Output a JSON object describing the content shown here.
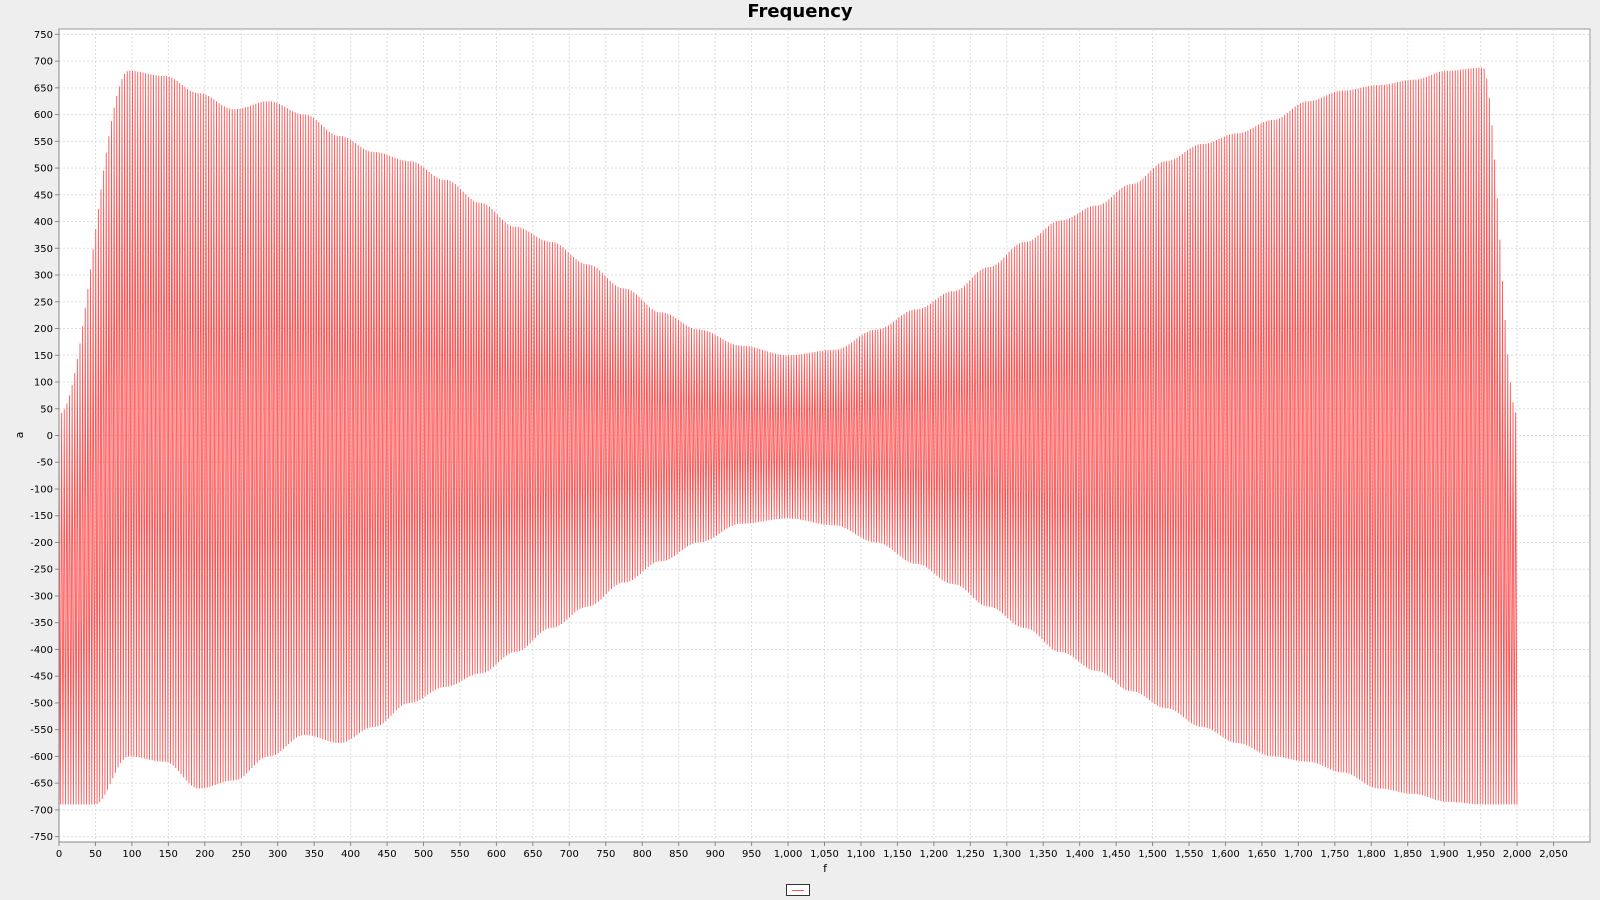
{
  "chart_data": {
    "type": "line",
    "title": "Frequency",
    "xlabel": "f",
    "ylabel": "a",
    "xlim": [
      0,
      2100
    ],
    "ylim": [
      -760,
      760
    ],
    "x_ticks": [
      0,
      50,
      100,
      150,
      200,
      250,
      300,
      350,
      400,
      450,
      500,
      550,
      600,
      650,
      700,
      750,
      800,
      850,
      900,
      950,
      1000,
      1050,
      1100,
      1150,
      1200,
      1250,
      1300,
      1350,
      1400,
      1450,
      1500,
      1550,
      1600,
      1650,
      1700,
      1750,
      1800,
      1850,
      1900,
      1950,
      2000,
      2050
    ],
    "y_ticks": [
      750,
      700,
      650,
      600,
      550,
      500,
      450,
      400,
      350,
      300,
      250,
      200,
      150,
      100,
      50,
      0,
      -50,
      -100,
      -150,
      -200,
      -250,
      -300,
      -350,
      -400,
      -450,
      -500,
      -550,
      -600,
      -650,
      -700,
      -750
    ],
    "grid": true,
    "legend_placement": "bottom-center",
    "series": [
      {
        "name": "",
        "color": "#ff5555",
        "carrier_period": 3.6,
        "lobe_upper_peaks": [
          [
            0,
            40
          ],
          [
            96,
            682
          ],
          [
            145,
            672
          ],
          [
            192,
            640
          ],
          [
            240,
            610
          ],
          [
            288,
            625
          ],
          [
            337,
            600
          ],
          [
            385,
            560
          ],
          [
            432,
            530
          ],
          [
            481,
            513
          ],
          [
            530,
            478
          ],
          [
            578,
            435
          ],
          [
            626,
            390
          ],
          [
            675,
            362
          ],
          [
            725,
            320
          ],
          [
            775,
            275
          ],
          [
            826,
            230
          ],
          [
            878,
            198
          ],
          [
            936,
            168
          ],
          [
            1000,
            150
          ],
          [
            1063,
            160
          ],
          [
            1121,
            198
          ],
          [
            1176,
            236
          ],
          [
            1227,
            270
          ],
          [
            1275,
            315
          ],
          [
            1325,
            362
          ],
          [
            1374,
            402
          ],
          [
            1423,
            430
          ],
          [
            1471,
            470
          ],
          [
            1519,
            513
          ],
          [
            1568,
            545
          ],
          [
            1616,
            565
          ],
          [
            1665,
            590
          ],
          [
            1713,
            625
          ],
          [
            1761,
            645
          ],
          [
            1810,
            655
          ],
          [
            1857,
            665
          ],
          [
            1905,
            682
          ],
          [
            1953,
            688
          ],
          [
            2000,
            40
          ]
        ],
        "lobe_lower_peaks": [
          [
            0,
            -690
          ],
          [
            49,
            -690
          ],
          [
            96,
            -600
          ],
          [
            145,
            -610
          ],
          [
            192,
            -660
          ],
          [
            240,
            -645
          ],
          [
            288,
            -600
          ],
          [
            337,
            -560
          ],
          [
            385,
            -575
          ],
          [
            432,
            -545
          ],
          [
            481,
            -500
          ],
          [
            530,
            -470
          ],
          [
            578,
            -445
          ],
          [
            626,
            -405
          ],
          [
            675,
            -360
          ],
          [
            725,
            -320
          ],
          [
            775,
            -275
          ],
          [
            826,
            -235
          ],
          [
            878,
            -200
          ],
          [
            936,
            -165
          ],
          [
            1000,
            -155
          ],
          [
            1063,
            -168
          ],
          [
            1121,
            -200
          ],
          [
            1176,
            -240
          ],
          [
            1227,
            -278
          ],
          [
            1275,
            -320
          ],
          [
            1325,
            -360
          ],
          [
            1374,
            -405
          ],
          [
            1423,
            -440
          ],
          [
            1471,
            -478
          ],
          [
            1519,
            -510
          ],
          [
            1568,
            -545
          ],
          [
            1616,
            -575
          ],
          [
            1665,
            -600
          ],
          [
            1713,
            -610
          ],
          [
            1761,
            -630
          ],
          [
            1810,
            -660
          ],
          [
            1857,
            -670
          ],
          [
            1905,
            -685
          ],
          [
            1953,
            -690
          ],
          [
            2000,
            -690
          ]
        ]
      }
    ]
  }
}
